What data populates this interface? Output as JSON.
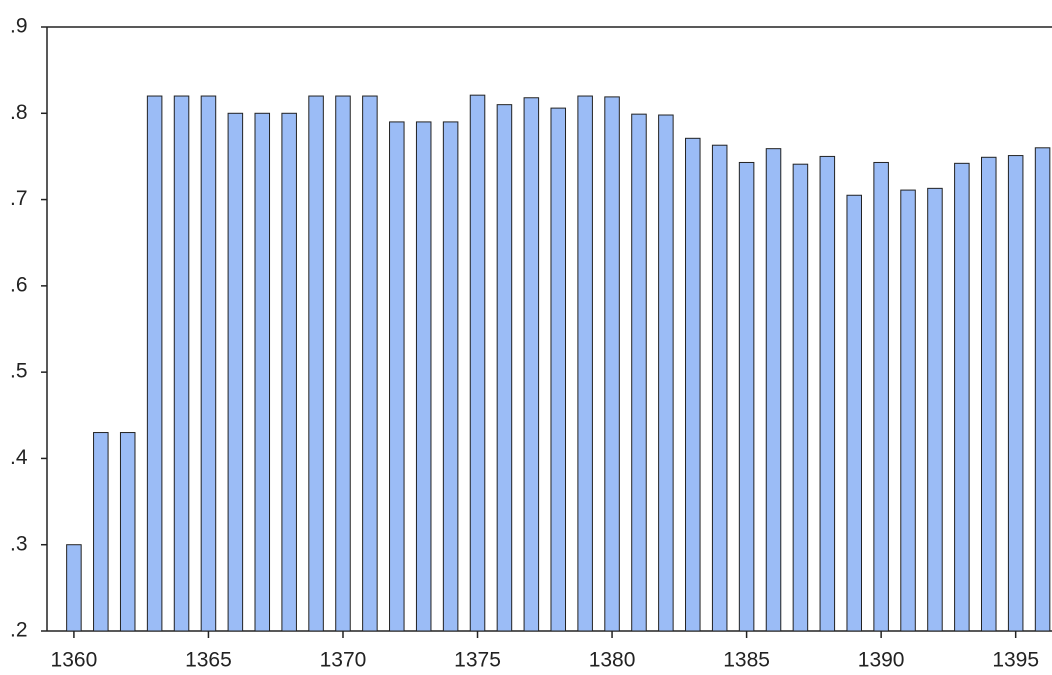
{
  "chart_data": {
    "type": "bar",
    "x": [
      1360,
      1361,
      1362,
      1363,
      1364,
      1365,
      1366,
      1367,
      1368,
      1369,
      1370,
      1371,
      1372,
      1373,
      1374,
      1375,
      1376,
      1377,
      1378,
      1379,
      1380,
      1381,
      1382,
      1383,
      1384,
      1385,
      1386,
      1387,
      1388,
      1389,
      1390,
      1391,
      1392,
      1393,
      1394,
      1395,
      1396
    ],
    "values": [
      0.3,
      0.43,
      0.43,
      0.82,
      0.82,
      0.82,
      0.8,
      0.8,
      0.8,
      0.82,
      0.82,
      0.82,
      0.79,
      0.79,
      0.79,
      0.821,
      0.81,
      0.818,
      0.806,
      0.82,
      0.819,
      0.799,
      0.798,
      0.771,
      0.763,
      0.743,
      0.759,
      0.741,
      0.75,
      0.705,
      0.743,
      0.711,
      0.713,
      0.742,
      0.749,
      0.751,
      0.76
    ],
    "color": "#9bbcf6",
    "xlim": [
      1359,
      1396.35
    ],
    "xticks": [
      1360,
      1365,
      1370,
      1375,
      1380,
      1385,
      1390,
      1395
    ],
    "ylim": [
      0.2,
      0.9
    ],
    "yticks": [
      {
        "value": 0.2,
        "label": ".2"
      },
      {
        "value": 0.3,
        "label": ".3"
      },
      {
        "value": 0.4,
        "label": ".4"
      },
      {
        "value": 0.5,
        "label": ".5"
      },
      {
        "value": 0.6,
        "label": ".6"
      },
      {
        "value": 0.7,
        "label": ".7"
      },
      {
        "value": 0.8,
        "label": ".8"
      },
      {
        "value": 0.9,
        "label": ".9"
      }
    ]
  }
}
